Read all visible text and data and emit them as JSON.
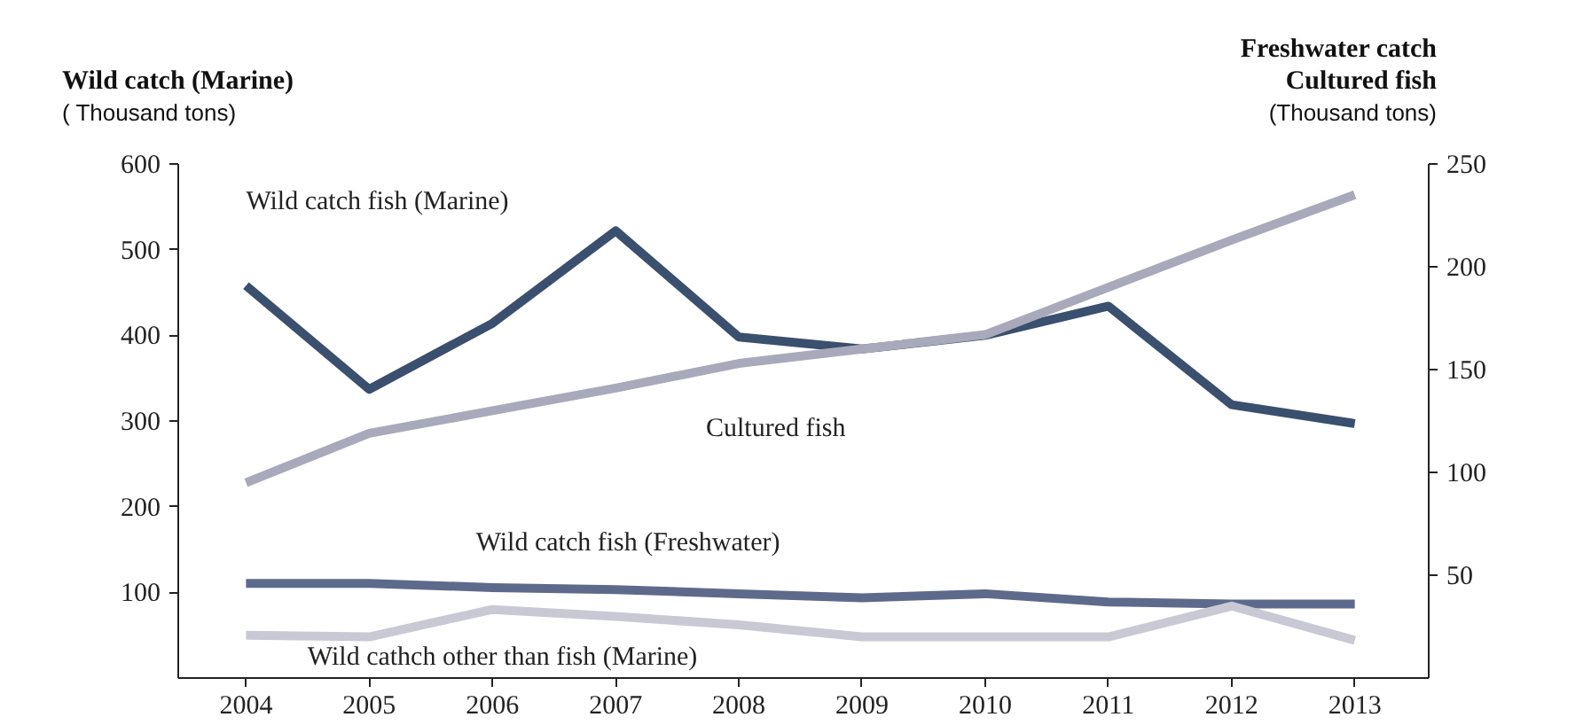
{
  "chart_data": {
    "type": "line",
    "ylabel": "Wild catch (Marine)\n( Thousand tons)",
    "y2label": "Freshwater catch\nCultured fish\n(Thousand tons)",
    "categories": [
      "2004",
      "2005",
      "2006",
      "2007",
      "2008",
      "2009",
      "2010",
      "2011",
      "2012",
      "2013"
    ],
    "series": [
      {
        "name": "Wild catch fish (Marine)",
        "color": "#3b4f6e",
        "values": [
          458,
          337,
          414,
          522,
          398,
          384,
          400,
          434,
          319,
          297
        ]
      },
      {
        "name": "Cultured fish",
        "color": "#a9a9bc",
        "axis": "y2",
        "values": [
          95,
          119,
          130,
          141,
          153,
          160,
          167,
          190,
          213,
          235
        ]
      },
      {
        "name": "Wild catch fish (Freshwater)",
        "color": "#5e6a8c",
        "axis": "y2",
        "values": [
          46,
          46,
          44,
          43,
          41,
          39,
          41,
          37,
          36,
          36
        ]
      },
      {
        "name": "Wild cathch other than fish (Marine)",
        "color": "#c9c9d6",
        "values": [
          50,
          48,
          80,
          72,
          62,
          48,
          48,
          48,
          84,
          44
        ]
      }
    ],
    "ylim": [
      0,
      600
    ],
    "yticks": [
      100,
      200,
      300,
      400,
      500,
      600
    ],
    "y2lim": [
      0,
      250
    ],
    "y2ticks": [
      50,
      100,
      150,
      200,
      250
    ],
    "grid": false,
    "marker": "none",
    "line_style": "solid"
  }
}
